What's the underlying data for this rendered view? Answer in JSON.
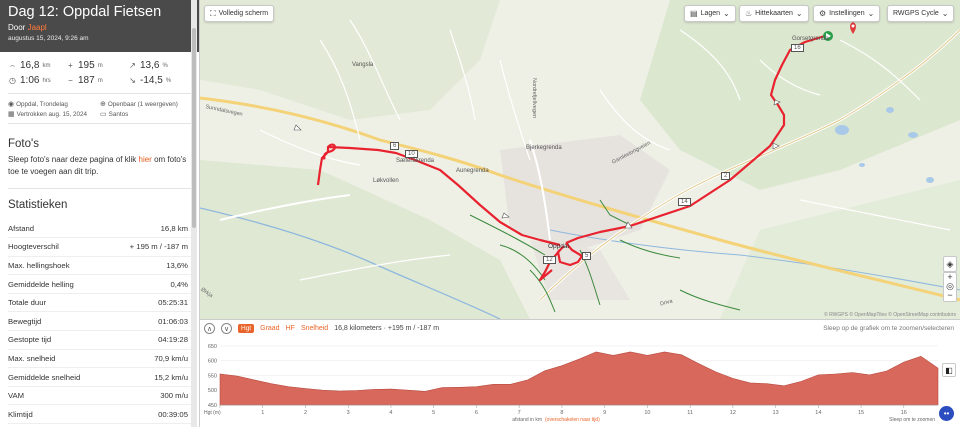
{
  "trip": {
    "title": "Dag 12: Oppdal Fietsen",
    "by_prefix": "Door",
    "user": "Jaapl",
    "date": "augustus 15, 2024, 9:26 am"
  },
  "summary": {
    "distance": "16,8",
    "distance_unit": "km",
    "elev_gain": "195",
    "elev_gain_unit": "m",
    "max_grade": "13,6",
    "max_grade_unit": "%",
    "duration": "1:06",
    "duration_unit": "hrs",
    "elev_loss": "187",
    "elev_loss_unit": "m",
    "min_grade": "-14,5",
    "min_grade_unit": "%"
  },
  "meta": {
    "location": "Oppdal, Trondelag",
    "visibility": "Openbaar (1 weergeven)",
    "departed": "Vertrokken aug. 15, 2024",
    "device": "Santos"
  },
  "photos": {
    "heading": "Foto's",
    "text_before": "Sleep foto's naar deze pagina of klik ",
    "link": "hier",
    "text_after": " om foto's toe te voegen aan dit trip."
  },
  "stats": {
    "heading": "Statistieken",
    "rows": [
      {
        "label": "Afstand",
        "value": "16,8 km"
      },
      {
        "label": "Hoogteverschil",
        "value": "+ 195 m / -187 m"
      },
      {
        "label": "Max. hellingshoek",
        "value": "13,6%"
      },
      {
        "label": "Gemiddelde helling",
        "value": "0,4%"
      },
      {
        "label": "Totale duur",
        "value": "05:25:31"
      },
      {
        "label": "Bewegtijd",
        "value": "01:06:03"
      },
      {
        "label": "Gestopte tijd",
        "value": "04:19:28"
      },
      {
        "label": "Max. snelheid",
        "value": "70,9 km/u"
      },
      {
        "label": "Gemiddelde snelheid",
        "value": "15,2 km/u"
      },
      {
        "label": "VAM",
        "value": "300 m/u"
      },
      {
        "label": "Klimtijd",
        "value": "00:39:05"
      }
    ]
  },
  "map": {
    "fullscreen": "Volledig scherm",
    "layers": "Lagen",
    "heatmaps": "Hittekaarten",
    "settings": "Instellingen",
    "style": "RWGPS Cycle",
    "places": {
      "vangsla": "Vangsla",
      "saeterenga": "Sæteråkrenda",
      "lauvoll": "Løkvollen",
      "aunegrenda": "Aunegrenda",
      "bjerkegrenda": "Bjerkegrenda",
      "oppdal": "Oppdal",
      "gjevillen": "Gamlestongveien",
      "gorsetgrenda": "Gorsetgrenda",
      "sunndalsvegen": "Sunndalsvegen",
      "nordrefjellveien": "Nordrefjellvegen",
      "orkla": "Ørkja",
      "driva": "Driva"
    },
    "markers": [
      "2",
      "6",
      "10",
      "12",
      "14",
      "16",
      "5"
    ],
    "attribution": "© RWGPS © OpenMapTiles © OpenStreetMap contributors"
  },
  "elevation": {
    "tabs": [
      "Hgt",
      "Graad",
      "HF",
      "Snelheid"
    ],
    "summary": "16,8 kilometers · +195 m / -187 m",
    "hint": "Sleep op de grafiek om te zoomen/selecteren",
    "yticks": [
      "650",
      "600",
      "550",
      "500",
      "450"
    ],
    "xticks": [
      "0",
      "1",
      "2",
      "3",
      "4",
      "5",
      "6",
      "7",
      "8",
      "9",
      "10",
      "11",
      "12",
      "13",
      "14",
      "15",
      "16"
    ],
    "ylabel": "Hgt (m)",
    "footer_left": "afstand in km",
    "footer_link": "(overschakelen naar tijd)",
    "footer_right": "Sleep om te zoomen"
  },
  "chart_data": {
    "type": "area",
    "xlabel": "afstand in km",
    "ylabel": "Hgt (m)",
    "ylim": [
      450,
      660
    ],
    "xlim": [
      0,
      16.8
    ],
    "x": [
      0,
      0.4,
      0.8,
      1.2,
      1.6,
      2.0,
      2.4,
      2.8,
      3.2,
      3.6,
      4.0,
      4.4,
      4.8,
      5.2,
      5.6,
      6.0,
      6.4,
      6.8,
      7.2,
      7.6,
      8.0,
      8.4,
      8.8,
      9.2,
      9.6,
      10.0,
      10.4,
      10.8,
      11.2,
      11.6,
      12.0,
      12.4,
      12.8,
      13.2,
      13.6,
      14.0,
      14.4,
      14.8,
      15.2,
      15.6,
      16.0,
      16.4,
      16.8
    ],
    "values": [
      555,
      548,
      535,
      522,
      512,
      506,
      500,
      497,
      499,
      503,
      504,
      500,
      496,
      509,
      510,
      512,
      520,
      520,
      535,
      566,
      583,
      605,
      630,
      618,
      630,
      618,
      630,
      620,
      590,
      562,
      540,
      525,
      522,
      515,
      530,
      552,
      555,
      560,
      552,
      565,
      595,
      615,
      575
    ],
    "color": "#d9685c"
  },
  "colors": {
    "route": "#e8222e",
    "accent": "#e8642a",
    "header": "#4a4a4a"
  }
}
